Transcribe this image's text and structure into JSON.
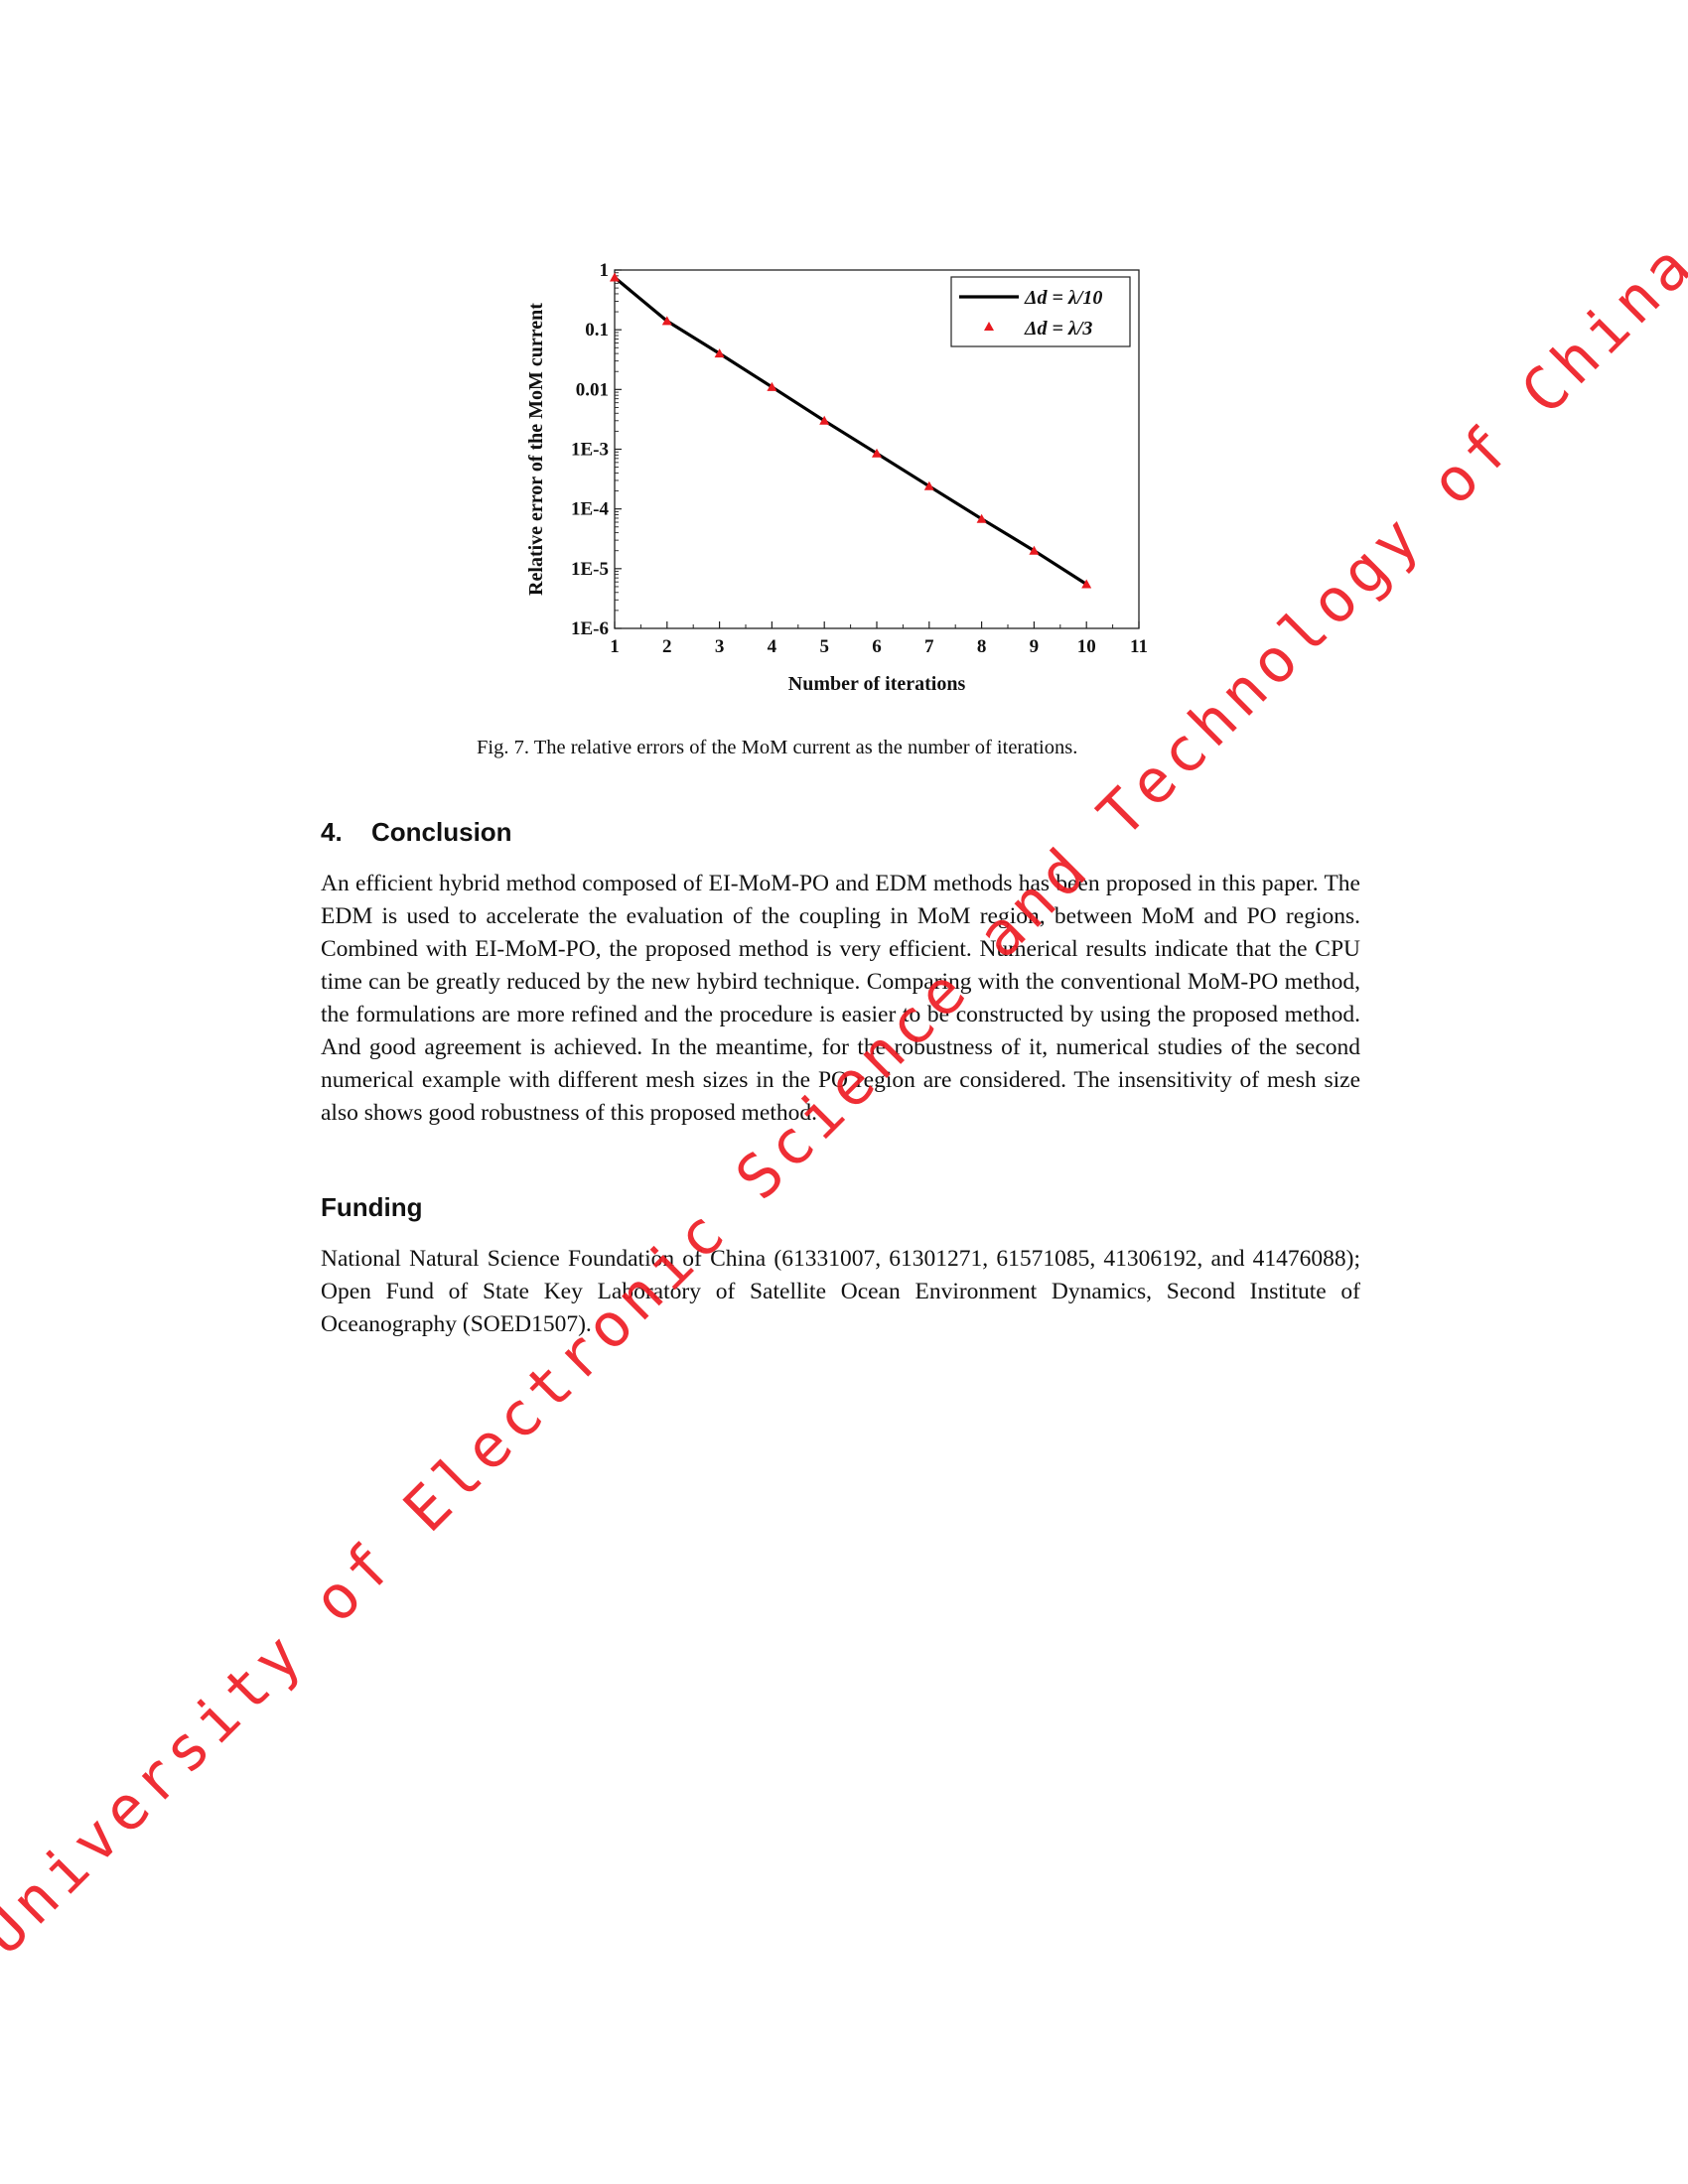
{
  "chart_data": {
    "type": "line",
    "xlabel": "Number of iterations",
    "ylabel": "Relative error of the MoM current",
    "y_scale": "log",
    "xlim": [
      1,
      11
    ],
    "ylim": [
      1e-06,
      1
    ],
    "x_ticks": [
      "1",
      "2",
      "3",
      "4",
      "5",
      "6",
      "7",
      "8",
      "9",
      "10",
      "11"
    ],
    "y_ticks": [
      "1",
      "0.1",
      "0.01",
      "1E-3",
      "1E-4",
      "1E-5",
      "1E-6"
    ],
    "legend_position": "top-right",
    "grid": false,
    "series": [
      {
        "name": "Δd = λ/10",
        "style": "line",
        "color": "#000000",
        "x": [
          1,
          2,
          3,
          4,
          5,
          6,
          7,
          8,
          9,
          10
        ],
        "y": [
          0.75,
          0.14,
          0.04,
          0.011,
          0.003,
          0.00085,
          0.00024,
          6.8e-05,
          2e-05,
          5.5e-06
        ]
      },
      {
        "name": "Δd = λ/3",
        "style": "triangle-markers",
        "color": "#e8191f",
        "x": [
          1,
          2,
          3,
          4,
          5,
          6,
          7,
          8,
          9,
          10
        ],
        "y": [
          0.75,
          0.14,
          0.04,
          0.011,
          0.003,
          0.00085,
          0.00024,
          6.8e-05,
          2e-05,
          5.5e-06
        ]
      }
    ]
  },
  "caption": "Fig. 7. The relative errors of the MoM current as the number of iterations.",
  "sections": [
    {
      "number": "4.",
      "title": "Conclusion",
      "text": "An efficient hybrid method composed of EI-MoM-PO and EDM methods has been proposed in this paper. The EDM is used to accelerate the evaluation of the coupling in MoM region, between MoM and PO regions. Combined with EI-MoM-PO, the proposed method is very efficient. Numerical results indicate that the CPU time can be greatly reduced by the new hy­bird technique. Comparing with the conventional MoM-PO method, the formulations are more refined and the procedure is easier to be constructed by using the proposed method. And good agreement is achieved. In the meantime, for the robustness of it, numerical studies of the second numerical example with different mesh sizes in the PO region are considered. The insensitivity of mesh size also shows good robustness of this proposed method."
    },
    {
      "title": "Funding",
      "text": "National Natural Science Foundation of China (61331007, 61301271, 61571085, 41306192, and 41476088); Open Fund of State Key Laboratory of Satellite Ocean Environment Dynamics, Second Institute of Oceanography (SOED1507)."
    }
  ],
  "watermark": {
    "text": "University of Electronic Science and Technology of China",
    "color": "#ee1c24"
  }
}
